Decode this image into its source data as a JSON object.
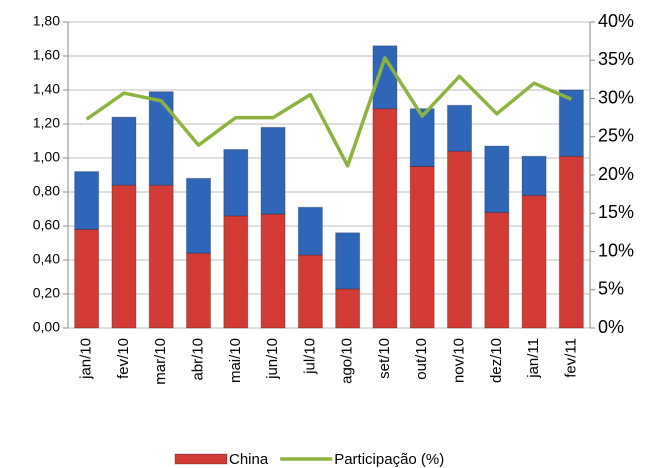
{
  "chart_data": {
    "type": "bar",
    "categories": [
      "jan/10",
      "fev/10",
      "mar/10",
      "abr/10",
      "mai/10",
      "jun/10",
      "jul/10",
      "ago/10",
      "set/10",
      "out/10",
      "nov/10",
      "dez/10",
      "jan/11",
      "fev/11"
    ],
    "series": [
      {
        "name": "China",
        "color": "#d23b36",
        "values": [
          0.58,
          0.84,
          0.84,
          0.44,
          0.66,
          0.67,
          0.43,
          0.23,
          1.29,
          0.95,
          1.04,
          0.68,
          0.78,
          1.01
        ]
      },
      {
        "color": "#2f66b8",
        "values": [
          0.34,
          0.4,
          0.55,
          0.44,
          0.39,
          0.51,
          0.28,
          0.33,
          0.37,
          0.34,
          0.27,
          0.39,
          0.23,
          0.39
        ]
      },
      {
        "name": "Participação (%)",
        "color": "#8db33f",
        "type": "line",
        "axis": "y2",
        "values": [
          27.3,
          30.7,
          29.7,
          23.9,
          27.5,
          27.5,
          30.5,
          21.2,
          35.3,
          27.7,
          32.9,
          28.0,
          32.0,
          29.9
        ]
      }
    ],
    "stacked": true,
    "ylim": [
      0,
      1.8
    ],
    "yticks": [
      {
        "value": 0,
        "label": "0,00"
      },
      {
        "value": 0.2,
        "label": "0,20"
      },
      {
        "value": 0.4,
        "label": "0,40"
      },
      {
        "value": 0.6,
        "label": "0,60"
      },
      {
        "value": 0.8,
        "label": "0,80"
      },
      {
        "value": 1.0,
        "label": "1,00"
      },
      {
        "value": 1.2,
        "label": "1,20"
      },
      {
        "value": 1.4,
        "label": "1,40"
      },
      {
        "value": 1.6,
        "label": "1,60"
      },
      {
        "value": 1.8,
        "label": "1,80"
      }
    ],
    "y2lim": [
      0,
      40
    ],
    "y2ticks": [
      {
        "value": 0,
        "label": "0%"
      },
      {
        "value": 5,
        "label": "5%"
      },
      {
        "value": 10,
        "label": "10%"
      },
      {
        "value": 15,
        "label": "15%"
      },
      {
        "value": 20,
        "label": "20%"
      },
      {
        "value": 25,
        "label": "25%"
      },
      {
        "value": 30,
        "label": "30%"
      },
      {
        "value": 35,
        "label": "35%"
      },
      {
        "value": 40,
        "label": "40%"
      }
    ],
    "grid": true
  }
}
